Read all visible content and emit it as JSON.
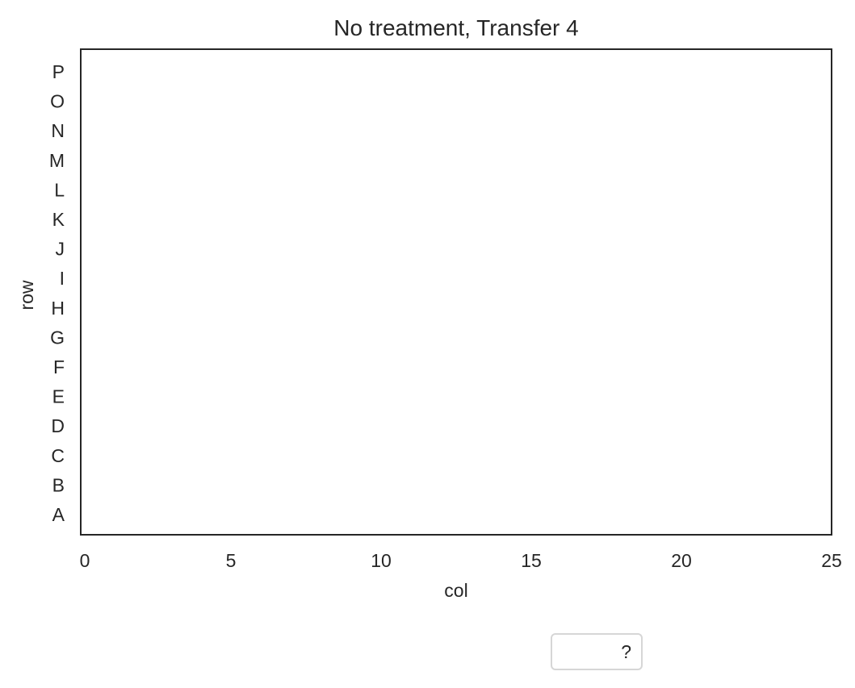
{
  "chart_data": {
    "type": "scatter",
    "title": "No treatment, Transfer 4",
    "xlabel": "col",
    "ylabel": "row",
    "xlim": [
      0,
      25
    ],
    "x_ticks": [
      "0",
      "5",
      "10",
      "15",
      "20",
      "25"
    ],
    "x_tick_values": [
      0,
      5,
      10,
      15,
      20,
      25
    ],
    "y_ticks": [
      "P",
      "O",
      "N",
      "M",
      "L",
      "K",
      "J",
      "I",
      "H",
      "G",
      "F",
      "E",
      "D",
      "C",
      "B",
      "A"
    ],
    "grid": false,
    "series": [],
    "legend": {
      "placement": "below",
      "entries": [
        "?"
      ]
    },
    "colors": {
      "frame": "#262626",
      "text": "#262626",
      "legend_border": "#d6d6d6"
    }
  }
}
